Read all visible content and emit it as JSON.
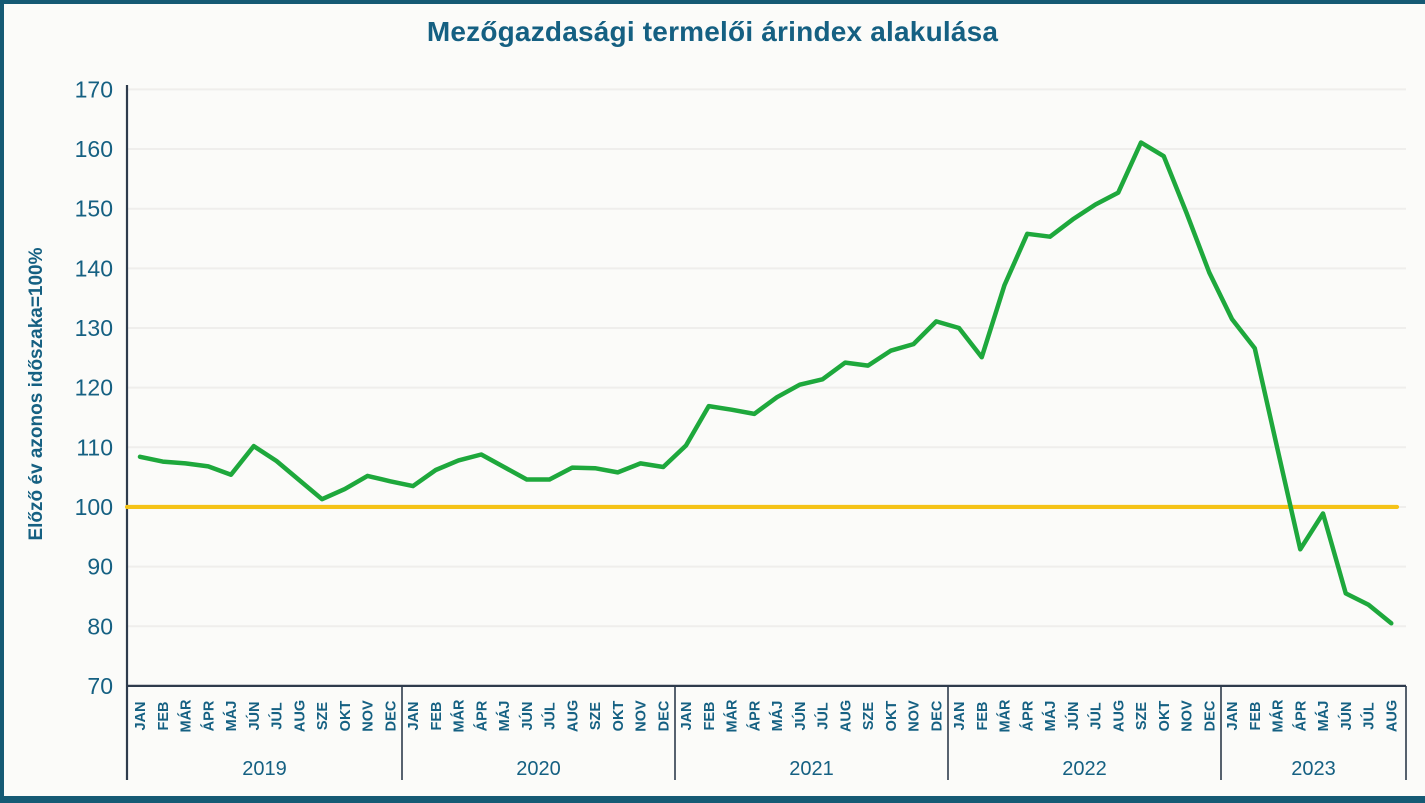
{
  "title": "Mezőgazdasági termelői árindex alakulása",
  "colors": {
    "accent_teal_text": "#156082",
    "series_green": "#1ea83c",
    "reference_gold": "#f5c318",
    "axis_dark": "#2e3b4c",
    "gridline": "#efeeec",
    "background": "#fbfbf9",
    "slide_border": "#155a74"
  },
  "chart_data": {
    "type": "line",
    "title": "Mezőgazdasági termelői árindex alakulása",
    "xlabel": "",
    "ylabel": "Előző év azonos időszaka=100%",
    "ylim": [
      70,
      170
    ],
    "y_ticks": [
      170,
      160,
      150,
      140,
      130,
      120,
      110,
      100,
      90,
      80,
      70
    ],
    "grid": "horizontal",
    "legend": "none",
    "reference_line": {
      "value": 100,
      "color": "#f5c318"
    },
    "series_color": "#1ea83c",
    "years": [
      {
        "label": "2019",
        "months": [
          "JAN",
          "FEB",
          "MÁR",
          "ÁPR",
          "MÁJ",
          "JÚN",
          "JÚL",
          "AUG",
          "SZE",
          "OKT",
          "NOV",
          "DEC"
        ],
        "values": [
          108.4,
          107.6,
          107.3,
          106.8,
          105.4,
          110.2,
          107.7,
          104.5,
          101.3,
          103.0,
          105.2,
          104.3
        ]
      },
      {
        "label": "2020",
        "months": [
          "JAN",
          "FEB",
          "MÁR",
          "ÁPR",
          "MÁJ",
          "JÚN",
          "JÚL",
          "AUG",
          "SZE",
          "OKT",
          "NOV",
          "DEC"
        ],
        "values": [
          103.5,
          106.2,
          107.8,
          108.8,
          106.7,
          104.6,
          104.6,
          106.6,
          106.5,
          105.8,
          107.3,
          106.7
        ]
      },
      {
        "label": "2021",
        "months": [
          "JAN",
          "FEB",
          "MÁR",
          "ÁPR",
          "MÁJ",
          "JÚN",
          "JÚL",
          "AUG",
          "SZE",
          "OKT",
          "NOV",
          "DEC"
        ],
        "values": [
          110.3,
          116.9,
          116.3,
          115.6,
          118.4,
          120.5,
          121.4,
          124.2,
          123.7,
          126.2,
          127.3,
          131.1
        ]
      },
      {
        "label": "2022",
        "months": [
          "JAN",
          "FEB",
          "MÁR",
          "ÁPR",
          "MÁJ",
          "JÚN",
          "JÚL",
          "AUG",
          "SZE",
          "OKT",
          "NOV",
          "DEC"
        ],
        "values": [
          130.0,
          125.1,
          137.2,
          145.8,
          145.3,
          148.2,
          150.7,
          152.7,
          161.1,
          158.8,
          149.3,
          139.3
        ]
      },
      {
        "label": "2023",
        "months": [
          "JAN",
          "FEB",
          "MÁR",
          "ÁPR",
          "MÁJ",
          "JÚN",
          "JÚL",
          "AUG"
        ],
        "values": [
          131.5,
          126.6,
          109.7,
          92.9,
          98.9,
          85.5,
          83.6,
          80.5
        ]
      }
    ]
  }
}
